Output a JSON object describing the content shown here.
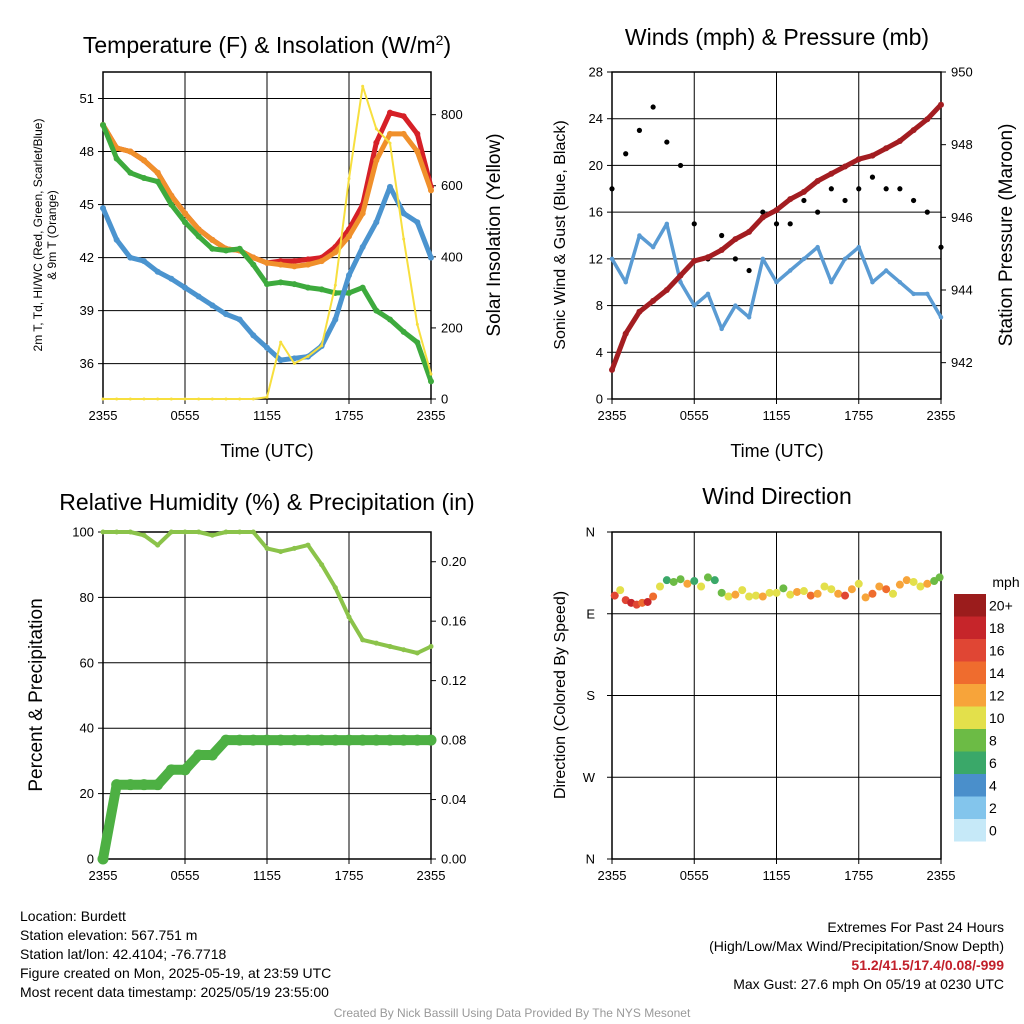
{
  "chart_data": [
    {
      "type": "line",
      "title": "Temperature (F) & Insolation (W/m²)",
      "title_main": "Temperature (F) & Insolation (W/m",
      "title_sup": "2",
      "title_end": ")",
      "xlabel": "Time (UTC)",
      "ylabel_line1": "2m T, Td, HI/WC (Red, Green, Scarlet/Blue)",
      "ylabel_line2": "& 9m T (Orange)",
      "ylabel_right": "Solar Insolation (Yellow)",
      "x_ticks": [
        "2355",
        "0555",
        "1155",
        "1755",
        "2355"
      ],
      "y_ticks": [
        "36",
        "39",
        "42",
        "45",
        "48",
        "51"
      ],
      "y_right_ticks": [
        "0",
        "200",
        "400",
        "600",
        "800"
      ],
      "ylim": [
        34,
        52.5
      ],
      "ylim_right": [
        0,
        920
      ],
      "x": [
        0,
        1,
        2,
        3,
        4,
        5,
        6,
        7,
        8,
        9,
        10,
        11,
        12,
        13,
        14,
        15,
        16,
        17,
        18,
        19,
        20,
        21,
        22,
        23,
        24
      ],
      "series": [
        {
          "key": "red",
          "color": "#d62027",
          "axis": "left",
          "values": [
            49.5,
            48.2,
            48.0,
            47.5,
            46.8,
            45.5,
            44.5,
            43.6,
            43.0,
            42.5,
            42.4,
            42.0,
            41.7,
            41.8,
            41.8,
            41.9,
            42.0,
            42.6,
            43.6,
            45.0,
            48.5,
            50.2,
            50.0,
            49.0,
            46.0
          ]
        },
        {
          "key": "orange",
          "color": "#f0902b",
          "axis": "left",
          "values": [
            49.5,
            48.2,
            48.0,
            47.5,
            46.8,
            45.5,
            44.5,
            43.6,
            43.0,
            42.5,
            42.4,
            42.0,
            41.7,
            41.6,
            41.5,
            41.6,
            41.8,
            42.3,
            43.2,
            44.5,
            47.5,
            49.0,
            49.0,
            48.0,
            45.8
          ]
        },
        {
          "key": "green",
          "color": "#3daa3d",
          "axis": "left",
          "values": [
            49.5,
            47.6,
            46.8,
            46.5,
            46.3,
            45.0,
            44.0,
            43.2,
            42.5,
            42.4,
            42.5,
            41.6,
            40.5,
            40.6,
            40.5,
            40.3,
            40.2,
            40.0,
            40.0,
            40.3,
            39.0,
            38.5,
            37.8,
            37.2,
            35.0
          ]
        },
        {
          "key": "blue",
          "color": "#4b94cf",
          "axis": "left",
          "values": [
            44.8,
            43.0,
            42.0,
            41.8,
            41.2,
            40.8,
            40.3,
            39.8,
            39.3,
            38.8,
            38.5,
            37.6,
            36.9,
            36.2,
            36.3,
            36.4,
            37.0,
            38.5,
            41.0,
            42.6,
            44.0,
            46.0,
            44.5,
            44.0,
            42.0
          ]
        },
        {
          "key": "yellow",
          "color": "#f7df3e",
          "axis": "right",
          "values": [
            0,
            0,
            0,
            0,
            0,
            0,
            0,
            0,
            0,
            0,
            0,
            0,
            5,
            160,
            100,
            120,
            150,
            320,
            620,
            880,
            760,
            720,
            450,
            210,
            70
          ]
        }
      ]
    },
    {
      "type": "line",
      "title": "Winds (mph) & Pressure (mb)",
      "xlabel": "Time (UTC)",
      "ylabel": "Sonic Wind & Gust (Blue, Black)",
      "ylabel_right": "Station Pressure (Maroon)",
      "x_ticks": [
        "2355",
        "0555",
        "1155",
        "1755",
        "2355"
      ],
      "y_ticks": [
        "0",
        "4",
        "8",
        "12",
        "16",
        "20",
        "24",
        "28"
      ],
      "y_right_ticks": [
        "942",
        "944",
        "946",
        "948",
        "950"
      ],
      "ylim": [
        0,
        28
      ],
      "ylim_right": [
        941.0,
        950.0
      ],
      "x": [
        0,
        1,
        2,
        3,
        4,
        5,
        6,
        7,
        8,
        9,
        10,
        11,
        12,
        13,
        14,
        15,
        16,
        17,
        18,
        19,
        20,
        21,
        22,
        23,
        24
      ],
      "series": [
        {
          "key": "wind",
          "name": "Sonic Wind",
          "color": "#5a9bd3",
          "axis": "left",
          "values": [
            12,
            10,
            14,
            13,
            15,
            10,
            8,
            9,
            6,
            8,
            7,
            12,
            10,
            11,
            12,
            13,
            10,
            12,
            13,
            10,
            11,
            10,
            9,
            9,
            7
          ]
        },
        {
          "key": "gust",
          "name": "Gust",
          "color": "#000000",
          "axis": "left",
          "markers": true,
          "values": [
            18,
            21,
            23,
            25,
            22,
            20,
            15,
            12,
            14,
            12,
            11,
            16,
            15,
            15,
            17,
            16,
            18,
            17,
            18,
            19,
            18,
            18,
            17,
            16,
            13
          ]
        },
        {
          "key": "pressure",
          "name": "Station Pressure",
          "color": "#a31d21",
          "axis": "right",
          "values": [
            941.8,
            942.8,
            943.4,
            943.7,
            944.0,
            944.4,
            944.8,
            944.9,
            945.1,
            945.4,
            945.6,
            946.0,
            946.2,
            946.5,
            946.7,
            947.0,
            947.2,
            947.4,
            947.6,
            947.7,
            947.9,
            948.1,
            948.4,
            948.7,
            949.1
          ]
        }
      ]
    },
    {
      "type": "line",
      "title": "Relative Humidity (%) & Precipitation (in)",
      "ylabel": "Percent & Precipitation",
      "x_ticks": [
        "2355",
        "0555",
        "1155",
        "1755",
        "2355"
      ],
      "y_ticks": [
        "0",
        "20",
        "40",
        "60",
        "80",
        "100"
      ],
      "y_right_ticks": [
        "0.00",
        "0.04",
        "0.08",
        "0.12",
        "0.16",
        "0.20"
      ],
      "ylim": [
        0,
        100
      ],
      "ylim_right": [
        0,
        0.22
      ],
      "x": [
        0,
        1,
        2,
        3,
        4,
        5,
        6,
        7,
        8,
        9,
        10,
        11,
        12,
        13,
        14,
        15,
        16,
        17,
        18,
        19,
        20,
        21,
        22,
        23,
        24
      ],
      "series": [
        {
          "key": "rh",
          "name": "Relative Humidity",
          "color": "#8bc34a",
          "axis": "left",
          "values": [
            100,
            100,
            100,
            99,
            96,
            100,
            100,
            100,
            99,
            100,
            100,
            100,
            95,
            94,
            95,
            96,
            90,
            83,
            74,
            67,
            66,
            65,
            64,
            63,
            65
          ]
        },
        {
          "key": "precip",
          "name": "Precipitation",
          "color": "#4db043",
          "axis": "right",
          "values": [
            0.0,
            0.05,
            0.05,
            0.05,
            0.05,
            0.06,
            0.06,
            0.07,
            0.07,
            0.08,
            0.08,
            0.08,
            0.08,
            0.08,
            0.08,
            0.08,
            0.08,
            0.08,
            0.08,
            0.08,
            0.08,
            0.08,
            0.08,
            0.08,
            0.08
          ]
        }
      ]
    },
    {
      "type": "scatter",
      "title": "Wind Direction",
      "ylabel": "Direction (Colored By Speed)",
      "x_ticks": [
        "2355",
        "0555",
        "1155",
        "1755",
        "2355"
      ],
      "y_ticks": [
        "N",
        "E",
        "S",
        "W",
        "N"
      ],
      "ylim": [
        0,
        360
      ],
      "colorbar_title": "mph",
      "colorbar_labels": [
        "0",
        "2",
        "4",
        "6",
        "8",
        "10",
        "12",
        "14",
        "16",
        "18",
        "20+"
      ],
      "colorbar_colors": [
        "#c6e9f8",
        "#83c5ec",
        "#4a8fcb",
        "#3aa869",
        "#6cbb45",
        "#e3e04b",
        "#f7a43a",
        "#ef6c2e",
        "#e04634",
        "#c6252a",
        "#9b1c1c"
      ],
      "x": [
        0.2,
        0.6,
        1,
        1.4,
        1.8,
        2.2,
        2.6,
        3,
        3.5,
        4,
        4.5,
        5,
        5.5,
        6,
        6.5,
        7,
        7.5,
        8,
        8.5,
        9,
        9.5,
        10,
        10.5,
        11,
        11.5,
        12,
        12.5,
        13,
        13.5,
        14,
        14.5,
        15,
        15.5,
        16,
        16.5,
        17,
        17.5,
        18,
        18.5,
        19,
        19.5,
        20,
        20.5,
        21,
        21.5,
        22,
        22.5,
        23,
        23.5,
        23.9
      ],
      "direction": [
        290,
        296,
        285,
        282,
        280,
        282,
        283,
        289,
        300,
        307,
        305,
        308,
        303,
        306,
        300,
        310,
        307,
        293,
        289,
        291,
        296,
        289,
        290,
        289,
        293,
        293,
        298,
        291,
        294,
        295,
        290,
        292,
        300,
        297,
        292,
        290,
        297,
        303,
        288,
        292,
        300,
        297,
        292,
        302,
        307,
        305,
        300,
        303,
        306,
        310
      ],
      "speed": [
        15,
        10,
        16,
        18,
        16,
        14,
        17,
        13,
        9,
        6,
        8,
        7,
        12,
        6,
        10,
        7,
        5,
        8,
        10,
        12,
        10,
        9,
        10,
        11,
        9,
        10,
        8,
        10,
        12,
        10,
        13,
        11,
        10,
        9,
        12,
        15,
        11,
        10,
        12,
        13,
        11,
        14,
        10,
        11,
        12,
        9,
        10,
        11,
        8,
        7
      ]
    }
  ],
  "info": {
    "location": "Location: Burdett",
    "elevation": "Station elevation: 567.751 m",
    "latlon": "Station lat/lon: 42.4104; -76.7718",
    "created": "Figure created on Mon, 2025-05-19, at 23:59 UTC",
    "recent": "Most recent data timestamp: 2025/05/19 23:55:00"
  },
  "extremes": {
    "title": "Extremes For Past 24 Hours",
    "subtitle": "(High/Low/Max Wind/Precipitation/Snow Depth)",
    "values": "51.2/41.5/17.4/0.08/-999",
    "gust": "Max Gust: 27.6 mph On 05/19 at 0230 UTC"
  },
  "credit": "Created By Nick Bassill Using Data Provided By The NYS Mesonet"
}
